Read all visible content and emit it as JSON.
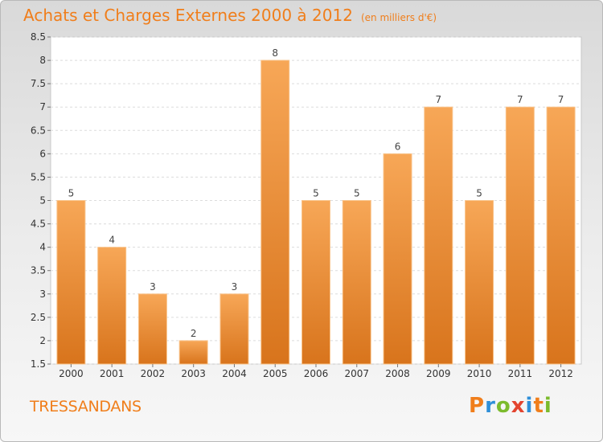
{
  "header": {
    "title": "Achats et Charges Externes 2000 à 2012",
    "subtitle": "(en milliers d'€)"
  },
  "footer": {
    "place": "TRESSANDANS",
    "logo_text": "Proxiti"
  },
  "colors": {
    "accent": "#f07e1b",
    "bar_light": "#f7a757",
    "bar_dark": "#d8741c",
    "logo": [
      "#f07e1b",
      "#2f8fd8",
      "#7cbb2d",
      "#e3442f",
      "#2f8fd8",
      "#f07e1b",
      "#7cbb2d"
    ]
  },
  "chart_data": {
    "type": "bar",
    "title": "Achats et Charges Externes 2000 à 2012",
    "subtitle": "(en milliers d'€)",
    "categories": [
      "2000",
      "2001",
      "2002",
      "2003",
      "2004",
      "2005",
      "2006",
      "2007",
      "2008",
      "2009",
      "2010",
      "2011",
      "2012"
    ],
    "values": [
      5,
      4,
      3,
      2,
      3,
      8,
      5,
      5,
      6,
      7,
      5,
      7,
      7
    ],
    "value_labels": [
      "5",
      "4",
      "3",
      "2",
      "3",
      "8",
      "5",
      "5",
      "6",
      "7",
      "5",
      "7",
      "7"
    ],
    "ylim": [
      1.5,
      8.5
    ],
    "yticks": [
      "1.5",
      "2",
      "2.5",
      "3",
      "3.5",
      "4",
      "4.5",
      "5",
      "5.5",
      "6",
      "6.5",
      "7",
      "7.5",
      "8",
      "8.5"
    ],
    "grid": true,
    "xlabel": "",
    "ylabel": ""
  }
}
